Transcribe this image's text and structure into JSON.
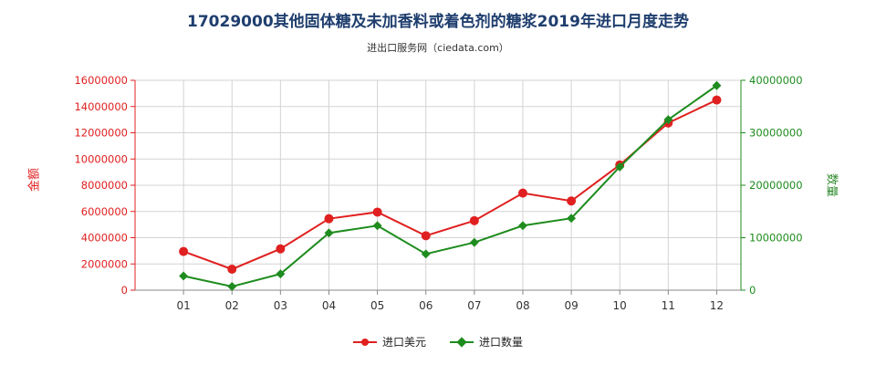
{
  "header": {
    "title": "17029000其他固体糖及未加香料或着色剂的糖浆2019年进口月度走势",
    "subtitle": "进出口服务网（ciedata.com）"
  },
  "chart_data": {
    "type": "line",
    "categories": [
      "01",
      "02",
      "03",
      "04",
      "05",
      "06",
      "07",
      "08",
      "09",
      "10",
      "11",
      "12"
    ],
    "y_left": {
      "label": "金额",
      "ylim": [
        0,
        16000000
      ],
      "ticks": [
        "0",
        "2000000",
        "4000000",
        "6000000",
        "8000000",
        "10000000",
        "12000000",
        "14000000",
        "16000000"
      ]
    },
    "y_right": {
      "label": "数量",
      "ylim": [
        0,
        40000000
      ],
      "ticks": [
        "0",
        "10000000",
        "20000000",
        "30000000",
        "40000000"
      ]
    },
    "series": [
      {
        "name": "进口美元",
        "axis": "left",
        "color": "#e02020",
        "values": [
          2950000,
          1600000,
          3150000,
          5450000,
          5950000,
          4150000,
          5300000,
          7400000,
          6800000,
          9550000,
          12750000,
          14500000
        ]
      },
      {
        "name": "进口数量",
        "axis": "right",
        "color": "#1e8c1e",
        "values": [
          2700000,
          700000,
          3100000,
          10900000,
          12300000,
          6900000,
          9100000,
          12300000,
          13700000,
          23500000,
          32500000,
          39000000
        ]
      }
    ],
    "grid": true,
    "legend_position": "bottom"
  }
}
